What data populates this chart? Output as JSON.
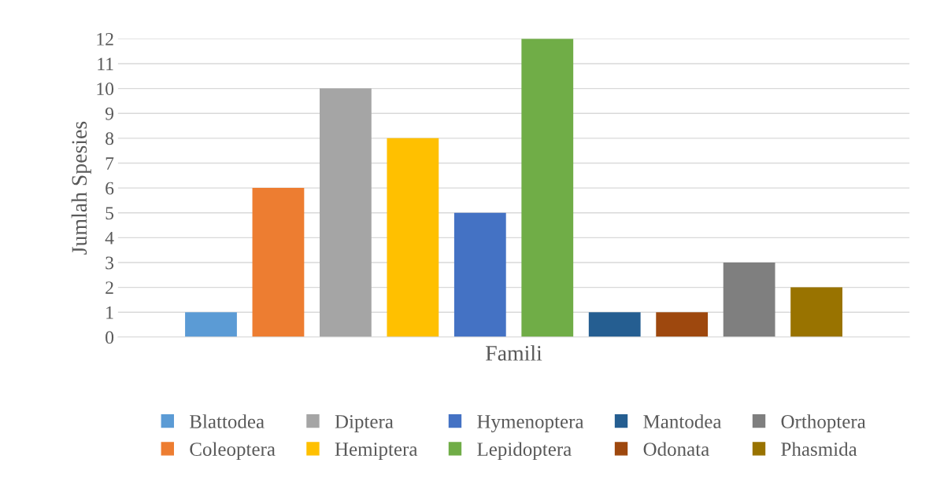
{
  "chart_data": {
    "type": "bar",
    "xlabel": "Famili",
    "ylabel": "Jumlah Spesies",
    "categories": [
      null
    ],
    "series": [
      {
        "name": "Blattodea",
        "color": "#5b9bd5",
        "values": [
          1
        ]
      },
      {
        "name": "Coleoptera",
        "color": "#ed7d31",
        "values": [
          6
        ]
      },
      {
        "name": "Diptera",
        "color": "#a5a5a5",
        "values": [
          10
        ]
      },
      {
        "name": "Hemiptera",
        "color": "#ffc000",
        "values": [
          8
        ]
      },
      {
        "name": "Hymenoptera",
        "color": "#4472c4",
        "values": [
          5
        ]
      },
      {
        "name": "Lepidoptera",
        "color": "#70ad47",
        "values": [
          12
        ]
      },
      {
        "name": "Mantodea",
        "color": "#255e91",
        "values": [
          1
        ]
      },
      {
        "name": "Odonata",
        "color": "#9e480e",
        "values": [
          1
        ]
      },
      {
        "name": "Orthoptera",
        "color": "#7f7f7f",
        "values": [
          3
        ]
      },
      {
        "name": "Phasmida",
        "color": "#997300",
        "values": [
          2
        ]
      }
    ],
    "ylim": [
      0,
      12
    ],
    "yticks": [
      0,
      1,
      2,
      3,
      4,
      5,
      6,
      7,
      8,
      9,
      10,
      11,
      12
    ],
    "grid": "y",
    "legend": "bottom"
  }
}
